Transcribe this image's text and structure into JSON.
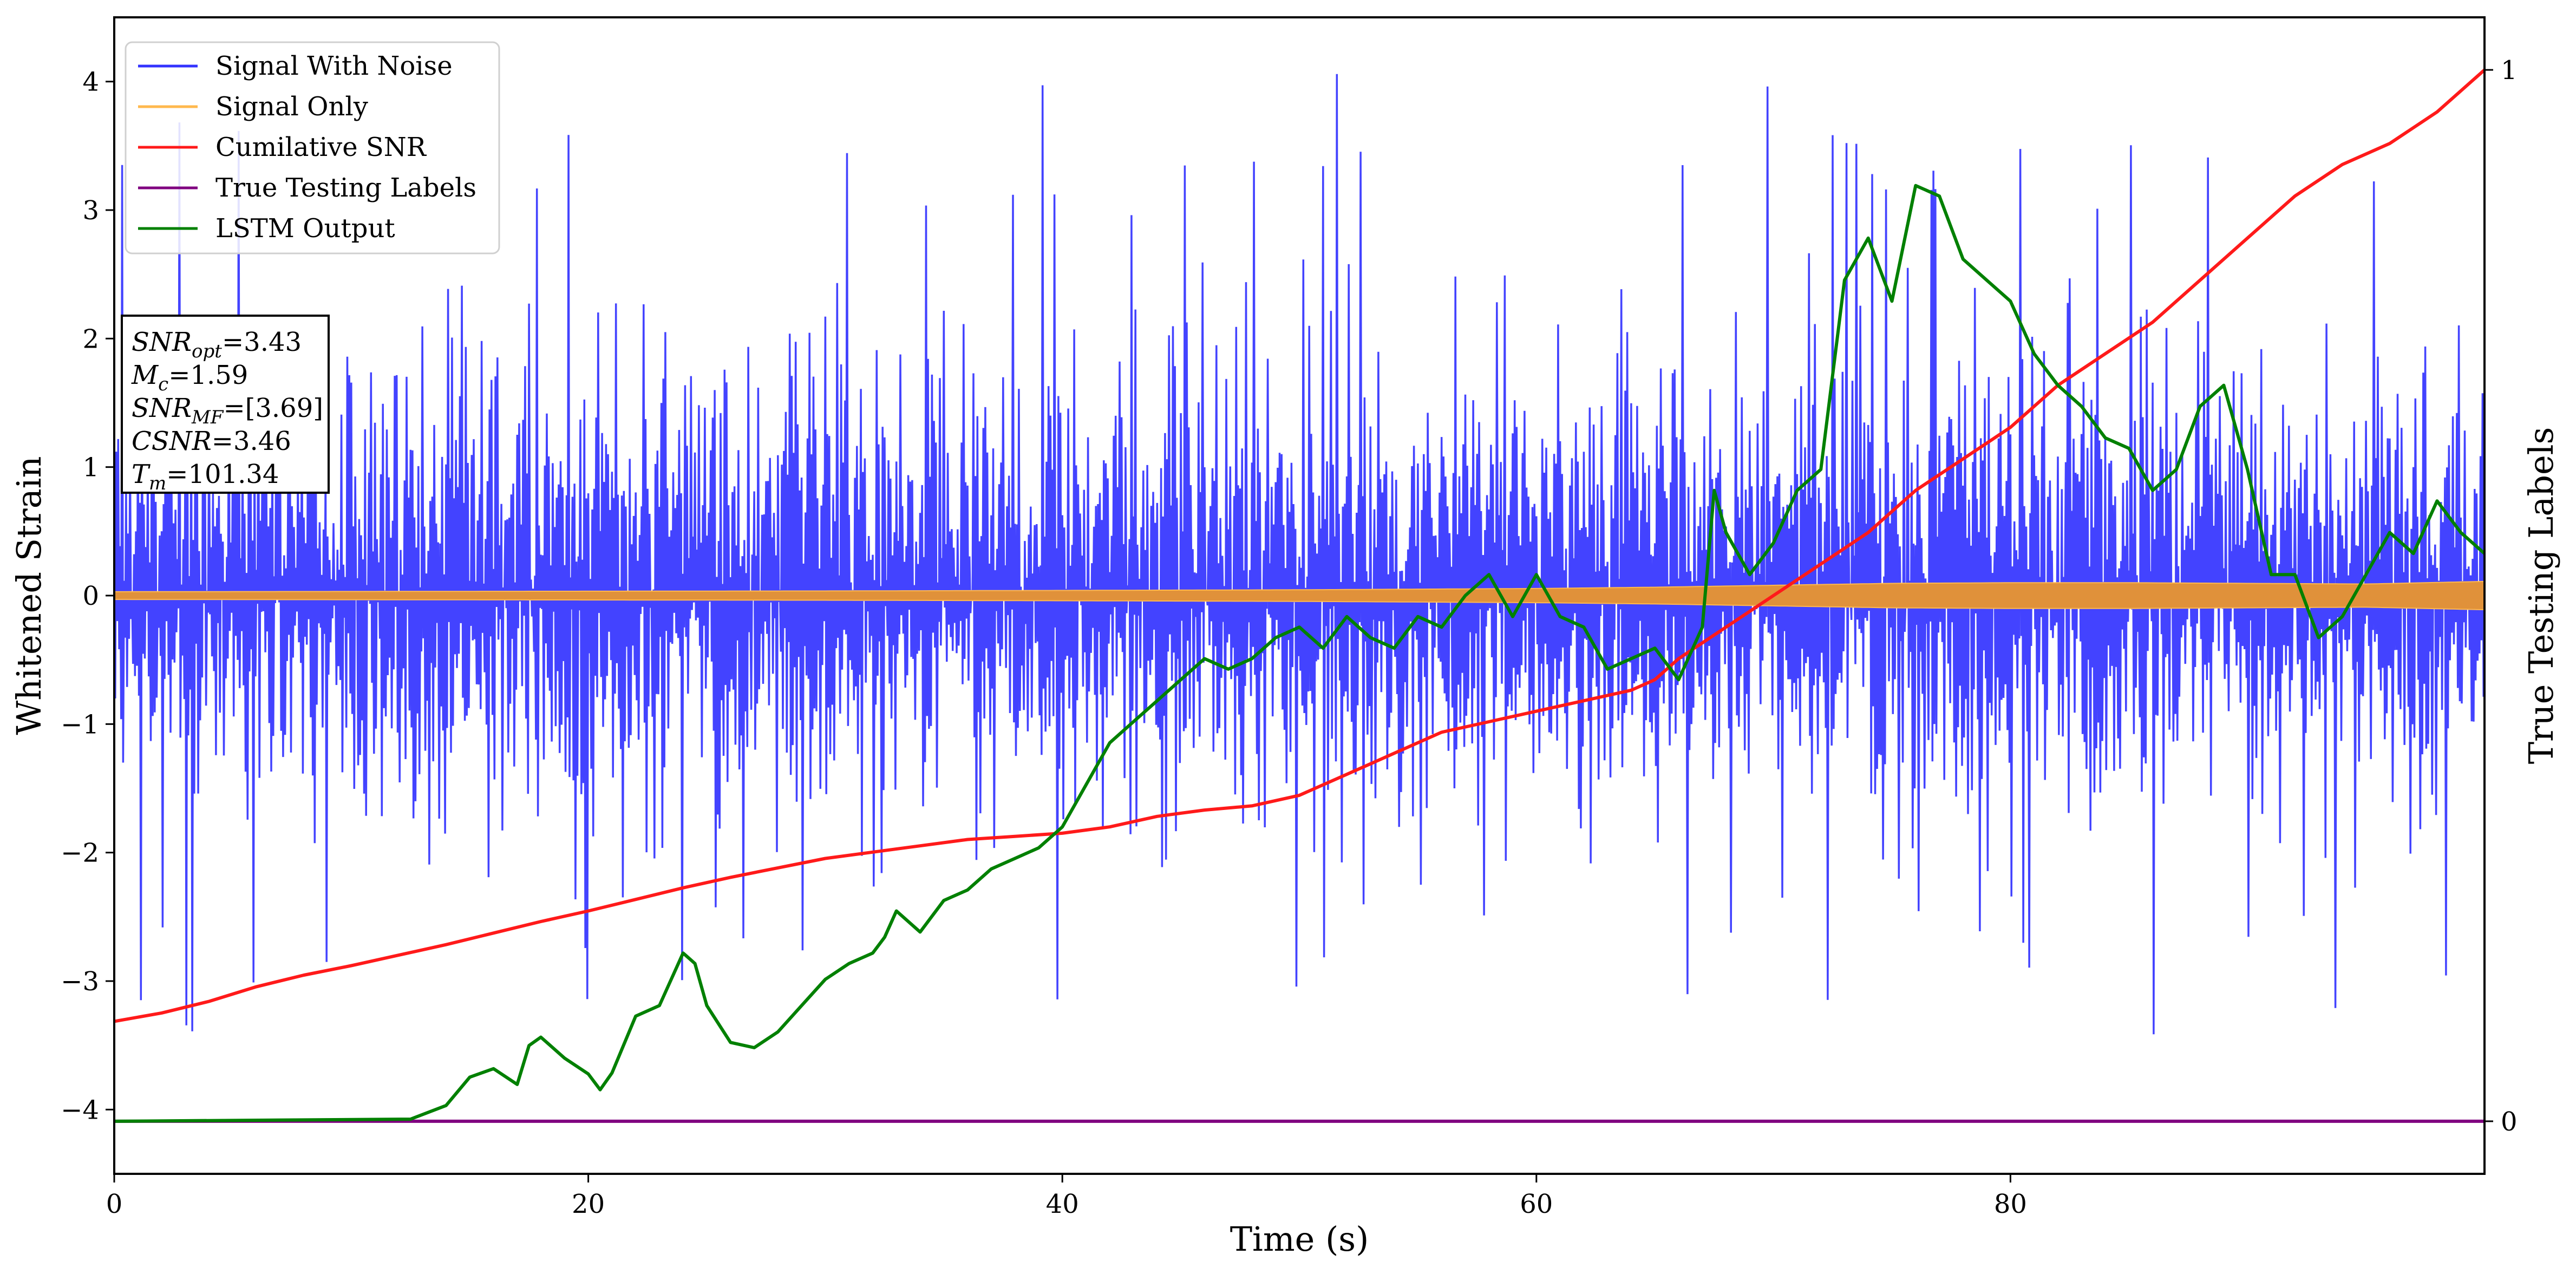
{
  "chart_data": {
    "type": "line",
    "title": "",
    "xlabel": "Time (s)",
    "ylabel": "Whitened Strain",
    "ylabel_right": "True Testing Labels",
    "xlim": [
      0,
      100
    ],
    "ylim": [
      -4.5,
      4.5
    ],
    "ylim_right": [
      -0.05,
      1.05
    ],
    "xticks": [
      0,
      20,
      40,
      60,
      80
    ],
    "yticks": [
      -4,
      -3,
      -2,
      -1,
      0,
      1,
      2,
      3,
      4
    ],
    "yticks_right": [
      0,
      1
    ],
    "grid": false,
    "legend_position": "upper-left",
    "legend": [
      {
        "label": "Signal With Noise",
        "color": "#3333ff"
      },
      {
        "label": "Signal Only",
        "color": "#ffb84d"
      },
      {
        "label": "Cumilative SNR",
        "color": "#ff1a1a"
      },
      {
        "label": "True Testing Labels",
        "color": "#800080"
      },
      {
        "label": "LSTM Output",
        "color": "#008000"
      }
    ],
    "annotation": [
      {
        "base": "SNR",
        "sub": "opt",
        "value": "=3.43"
      },
      {
        "base": "M",
        "sub": "c",
        "value": "=1.59"
      },
      {
        "base": "SNR",
        "sub": "MF",
        "value": "=[3.69]"
      },
      {
        "base": "CSNR",
        "sub": "",
        "value": "=3.46"
      },
      {
        "base": "T",
        "sub": "m",
        "value": "=101.34"
      }
    ],
    "series": [
      {
        "name": "Signal With Noise",
        "axis": "left",
        "color": "#3333ff",
        "description": "noise band, amplitude mostly within about -2 to 2.7, peaks near 3.7 and -4.1",
        "envelope": {
          "typical_low": -2.0,
          "typical_high": 2.7,
          "peak_high": 3.75,
          "peak_low": -4.1
        },
        "x": [
          0,
          100
        ]
      },
      {
        "name": "Signal Only",
        "axis": "left",
        "color": "#ffb84d",
        "x": [
          0,
          10,
          20,
          30,
          40,
          50,
          60,
          65,
          70,
          75,
          80,
          85,
          90,
          95,
          100
        ],
        "amplitude": [
          0.03,
          0.032,
          0.034,
          0.036,
          0.04,
          0.045,
          0.055,
          0.065,
          0.08,
          0.095,
          0.1,
          0.1,
          0.095,
          0.09,
          0.11
        ]
      },
      {
        "name": "Cumilative SNR",
        "axis": "right",
        "color": "#ff1a1a",
        "x": [
          0,
          2,
          4,
          6,
          8,
          10,
          12,
          14,
          16,
          18,
          20,
          22,
          24,
          26,
          28,
          30,
          32,
          34,
          36,
          38,
          40,
          42,
          44,
          46,
          48,
          50,
          52,
          54,
          56,
          58,
          60,
          62,
          64,
          65,
          66,
          68,
          70,
          72,
          74,
          76,
          78,
          80,
          82,
          84,
          86,
          88,
          90,
          92,
          94,
          96,
          98,
          100
        ],
        "values": [
          0.095,
          0.103,
          0.114,
          0.128,
          0.139,
          0.148,
          0.158,
          0.168,
          0.179,
          0.19,
          0.2,
          0.211,
          0.222,
          0.232,
          0.241,
          0.25,
          0.256,
          0.262,
          0.268,
          0.271,
          0.274,
          0.28,
          0.29,
          0.296,
          0.3,
          0.31,
          0.33,
          0.35,
          0.37,
          0.38,
          0.39,
          0.4,
          0.41,
          0.42,
          0.44,
          0.47,
          0.5,
          0.53,
          0.56,
          0.6,
          0.63,
          0.66,
          0.7,
          0.73,
          0.76,
          0.8,
          0.84,
          0.88,
          0.91,
          0.93,
          0.96,
          1.0
        ]
      },
      {
        "name": "True Testing Labels",
        "axis": "right",
        "color": "#800080",
        "x": [
          0,
          100
        ],
        "values": [
          0,
          0
        ]
      },
      {
        "name": "LSTM Output",
        "axis": "right",
        "color": "#008000",
        "x": [
          0,
          12.5,
          14,
          15,
          16,
          17,
          17.5,
          18,
          19,
          20,
          20.5,
          21,
          22,
          23,
          24,
          24.5,
          25,
          26,
          27,
          28,
          29,
          30,
          31,
          32,
          32.5,
          33,
          34,
          35,
          36,
          37,
          38,
          39,
          40,
          41,
          42,
          43,
          44,
          45,
          46,
          47,
          48,
          49,
          50,
          51,
          52,
          53,
          54,
          55,
          56,
          57,
          58,
          59,
          60,
          61,
          62,
          63,
          64,
          65,
          66,
          67,
          67.5,
          68,
          69,
          70,
          71,
          72,
          73,
          74,
          75,
          76,
          77,
          78,
          79,
          80,
          81,
          82,
          83,
          84,
          85,
          86,
          87,
          88,
          89,
          90,
          91,
          92,
          93,
          94,
          95,
          96,
          97,
          98,
          99,
          100
        ],
        "values": [
          0.0,
          0.002,
          0.015,
          0.042,
          0.05,
          0.035,
          0.072,
          0.08,
          0.06,
          0.045,
          0.03,
          0.046,
          0.1,
          0.11,
          0.16,
          0.15,
          0.11,
          0.075,
          0.07,
          0.085,
          0.11,
          0.135,
          0.15,
          0.16,
          0.175,
          0.2,
          0.18,
          0.21,
          0.22,
          0.24,
          0.25,
          0.26,
          0.28,
          0.32,
          0.36,
          0.38,
          0.4,
          0.42,
          0.44,
          0.43,
          0.44,
          0.46,
          0.47,
          0.45,
          0.48,
          0.46,
          0.45,
          0.48,
          0.47,
          0.5,
          0.52,
          0.48,
          0.52,
          0.48,
          0.47,
          0.43,
          0.44,
          0.45,
          0.42,
          0.47,
          0.6,
          0.56,
          0.52,
          0.55,
          0.6,
          0.62,
          0.8,
          0.84,
          0.78,
          0.89,
          0.88,
          0.82,
          0.8,
          0.78,
          0.73,
          0.7,
          0.68,
          0.65,
          0.64,
          0.6,
          0.62,
          0.68,
          0.7,
          0.62,
          0.52,
          0.52,
          0.46,
          0.48,
          0.52,
          0.56,
          0.54,
          0.59,
          0.56,
          0.54
        ]
      }
    ]
  }
}
